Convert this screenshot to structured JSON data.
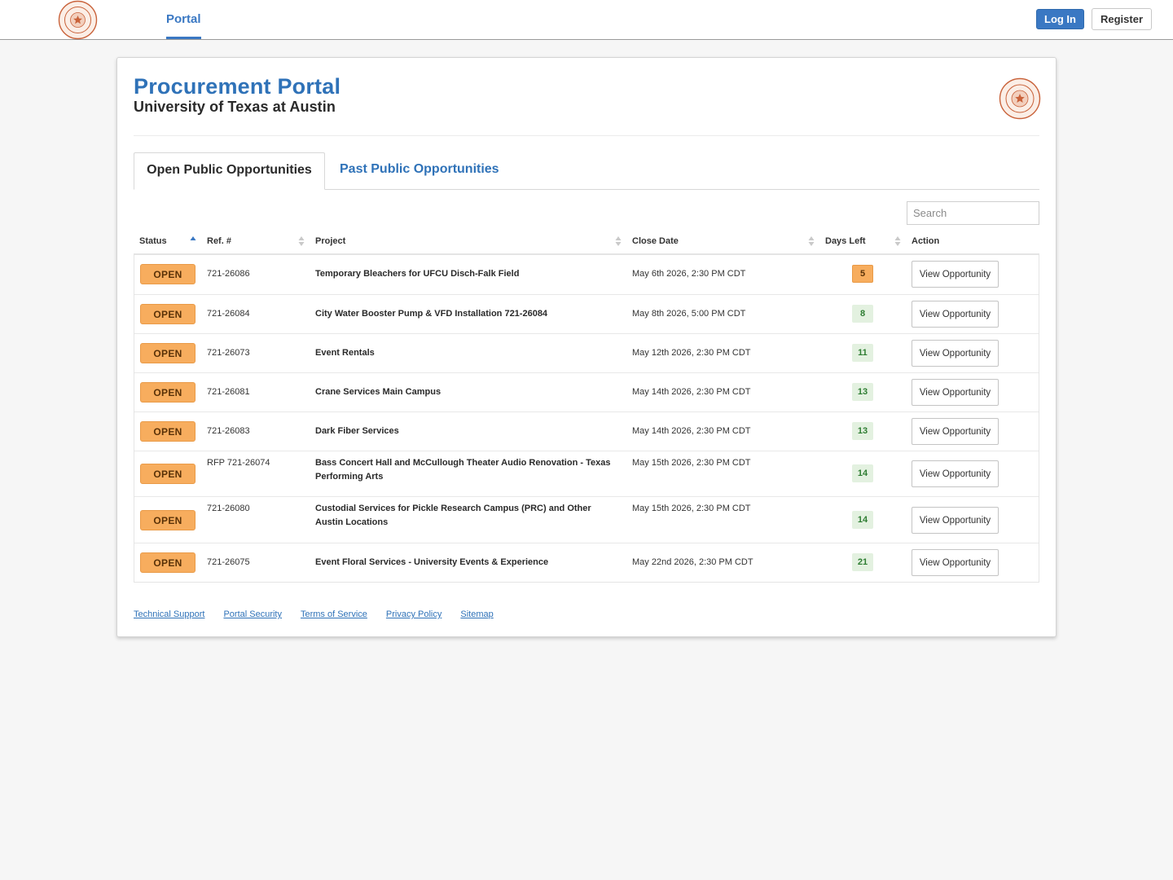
{
  "nav": {
    "portal_label": "Portal",
    "login_label": "Log In",
    "register_label": "Register"
  },
  "header": {
    "title": "Procurement Portal",
    "subtitle": "University of Texas at Austin"
  },
  "tabs": [
    {
      "label": "Open Public Opportunities"
    },
    {
      "label": "Past Public Opportunities"
    }
  ],
  "search": {
    "placeholder": "Search"
  },
  "columns": {
    "status": "Status",
    "ref": "Ref. #",
    "project": "Project",
    "close_date": "Close Date",
    "days_left": "Days Left",
    "action": "Action"
  },
  "rows": [
    {
      "status": "OPEN",
      "ref": "721-26086",
      "project": "Temporary Bleachers for UFCU Disch-Falk Field",
      "close_date": "May 6th 2026, 2:30 PM CDT",
      "days_left": "5",
      "days_color": "orange",
      "action": "View Opportunity"
    },
    {
      "status": "OPEN",
      "ref": "721-26084",
      "project": "City Water Booster Pump & VFD Installation 721-26084",
      "close_date": "May 8th 2026, 5:00 PM CDT",
      "days_left": "8",
      "days_color": "green",
      "action": "View Opportunity"
    },
    {
      "status": "OPEN",
      "ref": "721-26073",
      "project": "Event Rentals",
      "close_date": "May 12th 2026, 2:30 PM CDT",
      "days_left": "11",
      "days_color": "green",
      "action": "View Opportunity"
    },
    {
      "status": "OPEN",
      "ref": "721-26081",
      "project": "Crane Services Main Campus",
      "close_date": "May 14th 2026, 2:30 PM CDT",
      "days_left": "13",
      "days_color": "green",
      "action": "View Opportunity"
    },
    {
      "status": "OPEN",
      "ref": "721-26083",
      "project": "Dark Fiber Services",
      "close_date": "May 14th 2026, 2:30 PM CDT",
      "days_left": "13",
      "days_color": "green",
      "action": "View Opportunity"
    },
    {
      "status": "OPEN",
      "ref": "RFP 721-26074",
      "project": "Bass Concert Hall and McCullough Theater Audio Renovation - Texas Performing Arts",
      "close_date": "May 15th 2026, 2:30 PM CDT",
      "days_left": "14",
      "days_color": "green",
      "action": "View Opportunity"
    },
    {
      "status": "OPEN",
      "ref": "721-26080",
      "project": "Custodial Services for Pickle Research Campus (PRC) and Other Austin Locations",
      "close_date": "May 15th 2026, 2:30 PM CDT",
      "days_left": "14",
      "days_color": "green",
      "action": "View Opportunity"
    },
    {
      "status": "OPEN",
      "ref": "721-26075",
      "project": "Event Floral Services - University Events & Experience",
      "close_date": "May 22nd 2026, 2:30 PM CDT",
      "days_left": "21",
      "days_color": "green",
      "action": "View Opportunity"
    }
  ],
  "footer": [
    "Technical Support",
    "Portal Security",
    "Terms of Service",
    "Privacy Policy",
    "Sitemap"
  ],
  "colors": {
    "accent": "#2f72b8",
    "open_badge": "#f7ad5e",
    "days_orange_bg": "#f7ad5e",
    "days_orange_fg": "#5a3208",
    "days_green_bg": "#e3f1e0",
    "days_green_fg": "#2e7d32"
  },
  "icons": {
    "logo": "ut-austin-seal",
    "sort": "sort-arrows"
  }
}
